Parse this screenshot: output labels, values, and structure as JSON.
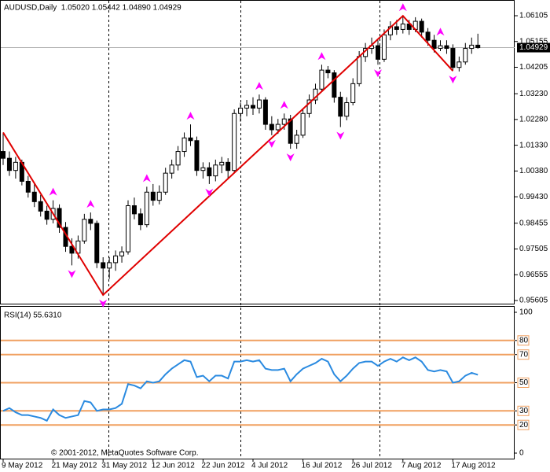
{
  "chart_data": [
    {
      "type": "candlestick",
      "title": "AUDUSD,Daily  1.05020 1.05442 1.04890 1.04929",
      "categories": [
        "9 May 2012",
        null,
        null,
        null,
        null,
        null,
        null,
        null,
        "21 May 2012",
        null,
        null,
        null,
        null,
        null,
        null,
        null,
        "31 May 2012",
        null,
        null,
        null,
        null,
        null,
        null,
        null,
        "12 Jun 2012",
        null,
        null,
        null,
        null,
        null,
        null,
        null,
        "22 Jun 2012",
        null,
        null,
        null,
        null,
        null,
        null,
        null,
        "4 Jul 2012",
        null,
        null,
        null,
        null,
        null,
        null,
        null,
        "16 Jul 2012",
        null,
        null,
        null,
        null,
        null,
        null,
        null,
        "26 Jul 2012",
        null,
        null,
        null,
        null,
        null,
        null,
        null,
        "7 Aug 2012",
        null,
        null,
        null,
        null,
        null,
        null,
        null,
        "17 Aug 2012",
        null,
        null,
        null,
        null
      ],
      "candles": [
        [
          1.011,
          1.018,
          1.006,
          1.0085
        ],
        [
          1.0085,
          1.011,
          1.002,
          1.004
        ],
        [
          1.004,
          1.009,
          1.001,
          1.007
        ],
        [
          1.007,
          1.008,
          0.9985,
          1.0
        ],
        [
          1.0,
          1.002,
          0.994,
          0.996
        ],
        [
          0.996,
          0.999,
          0.9905,
          0.9925
        ],
        [
          0.9925,
          0.995,
          0.987,
          0.989
        ],
        [
          0.989,
          0.991,
          0.984,
          0.986
        ],
        [
          0.986,
          0.993,
          0.9845,
          0.99
        ],
        [
          0.99,
          0.9915,
          0.981,
          0.983
        ],
        [
          0.983,
          0.985,
          0.974,
          0.976
        ],
        [
          0.976,
          0.979,
          0.969,
          0.9735
        ],
        [
          0.9735,
          0.98,
          0.9715,
          0.978
        ],
        [
          0.978,
          0.988,
          0.977,
          0.986
        ],
        [
          0.986,
          0.9885,
          0.982,
          0.9845
        ],
        [
          0.9845,
          0.9855,
          0.968,
          0.97
        ],
        [
          0.97,
          0.972,
          0.9581,
          0.968
        ],
        [
          0.968,
          0.972,
          0.964,
          0.97
        ],
        [
          0.97,
          0.9745,
          0.967,
          0.9725
        ],
        [
          0.9725,
          0.976,
          0.97,
          0.974
        ],
        [
          0.974,
          0.993,
          0.973,
          0.991
        ],
        [
          0.991,
          0.994,
          0.986,
          0.988
        ],
        [
          0.988,
          0.99,
          0.982,
          0.984
        ],
        [
          0.984,
          0.998,
          0.983,
          0.996
        ],
        [
          0.996,
          0.999,
          0.991,
          0.993
        ],
        [
          0.993,
          0.9985,
          0.9915,
          0.996
        ],
        [
          0.996,
          1.005,
          0.995,
          1.003
        ],
        [
          1.003,
          1.008,
          1.001,
          1.006
        ],
        [
          1.006,
          1.013,
          1.004,
          1.011
        ],
        [
          1.011,
          1.018,
          1.009,
          1.016
        ],
        [
          1.016,
          1.021,
          1.013,
          1.015
        ],
        [
          1.015,
          1.0165,
          1.002,
          1.004
        ],
        [
          1.004,
          1.007,
          1.001,
          1.005
        ],
        [
          1.005,
          1.007,
          0.999,
          1.002
        ],
        [
          1.002,
          1.008,
          1.0,
          1.006
        ],
        [
          1.006,
          1.009,
          1.003,
          1.007
        ],
        [
          1.007,
          1.0085,
          1.001,
          1.004
        ],
        [
          1.004,
          1.0265,
          1.003,
          1.025
        ],
        [
          1.025,
          1.029,
          1.022,
          1.027
        ],
        [
          1.027,
          1.03,
          1.024,
          1.028
        ],
        [
          1.028,
          1.031,
          1.0245,
          1.027
        ],
        [
          1.027,
          1.032,
          1.025,
          1.03
        ],
        [
          1.03,
          1.031,
          1.019,
          1.021
        ],
        [
          1.021,
          1.024,
          1.017,
          1.019
        ],
        [
          1.019,
          1.023,
          1.0175,
          1.021
        ],
        [
          1.021,
          1.025,
          1.019,
          1.023
        ],
        [
          1.023,
          1.0245,
          1.012,
          1.014
        ],
        [
          1.014,
          1.019,
          1.012,
          1.017
        ],
        [
          1.017,
          1.0265,
          1.016,
          1.025
        ],
        [
          1.025,
          1.032,
          1.0235,
          1.03
        ],
        [
          1.03,
          1.036,
          1.0285,
          1.034
        ],
        [
          1.034,
          1.043,
          1.033,
          1.041
        ],
        [
          1.041,
          1.0425,
          1.038,
          1.04
        ],
        [
          1.04,
          1.041,
          1.029,
          1.031
        ],
        [
          1.031,
          1.033,
          1.02,
          1.024
        ],
        [
          1.024,
          1.031,
          1.0225,
          1.029
        ],
        [
          1.029,
          1.038,
          1.028,
          1.036
        ],
        [
          1.036,
          1.048,
          1.035,
          1.046
        ],
        [
          1.046,
          1.051,
          1.044,
          1.049
        ],
        [
          1.049,
          1.053,
          1.047,
          1.05
        ],
        [
          1.05,
          1.052,
          1.043,
          1.045
        ],
        [
          1.045,
          1.056,
          1.044,
          1.054
        ],
        [
          1.054,
          1.059,
          1.052,
          1.057
        ],
        [
          1.057,
          1.0595,
          1.054,
          1.056
        ],
        [
          1.056,
          1.061,
          1.0545,
          1.058
        ],
        [
          1.058,
          1.0595,
          1.054,
          1.056
        ],
        [
          1.056,
          1.0605,
          1.055,
          1.059
        ],
        [
          1.059,
          1.06,
          1.053,
          1.055
        ],
        [
          1.055,
          1.0565,
          1.05,
          1.052
        ],
        [
          1.052,
          1.054,
          1.0475,
          1.049
        ],
        [
          1.049,
          1.052,
          1.048,
          1.05
        ],
        [
          1.05,
          1.052,
          1.047,
          1.049
        ],
        [
          1.049,
          1.0505,
          1.0407,
          1.042
        ],
        [
          1.042,
          1.046,
          1.0405,
          1.044
        ],
        [
          1.044,
          1.051,
          1.043,
          1.049
        ],
        [
          1.049,
          1.053,
          1.047,
          1.0502
        ],
        [
          1.0502,
          1.05442,
          1.0489,
          1.04929
        ]
      ],
      "ylim": [
        0.95605,
        1.06105
      ],
      "yticks": [
        1.06105,
        1.05155,
        1.04205,
        {
          "value": 1.0323,
          "label": "1.03230"
        },
        {
          "value": 1.0228,
          "label": "1.02280"
        },
        {
          "value": 1.0133,
          "label": "1.01330"
        },
        {
          "value": 1.0038,
          "label": "1.00380"
        },
        {
          "value": 0.9943,
          "label": "0.99430"
        },
        0.98455,
        0.97505,
        0.96555,
        0.95605
      ],
      "last_price": {
        "value": 1.04929,
        "label": "1.04929"
      },
      "zigzag": {
        "color": "#e00000",
        "indices": [
          0,
          16,
          64,
          72
        ],
        "values": [
          1.018,
          0.9581,
          1.061,
          1.0407
        ]
      },
      "fractals": {
        "color": "#ff00ff",
        "up": [
          8,
          14,
          23,
          30,
          41,
          45,
          51,
          64,
          70
        ],
        "down": [
          11,
          16,
          33,
          43,
          46,
          54,
          60,
          72
        ]
      }
    },
    {
      "type": "line",
      "title": "RSI(14) 55.6310",
      "annotation": "© 2001-2012, MetaQuotes Software Corp.",
      "series": [
        {
          "name": "RSI(14)",
          "color": "#2a8ae0",
          "values": [
            30,
            32,
            29,
            27,
            27,
            26,
            25,
            23,
            31,
            27,
            25,
            26,
            27,
            37,
            36,
            30,
            31,
            31,
            32,
            35,
            49,
            48,
            46,
            51,
            50,
            51,
            56,
            60,
            63,
            66,
            65,
            54,
            55,
            51,
            55,
            55,
            53,
            65,
            65,
            66,
            65,
            66,
            60,
            59,
            59,
            60,
            51,
            56,
            60,
            62,
            64,
            67,
            65,
            56,
            51,
            55,
            60,
            64,
            65,
            65,
            62,
            65,
            67,
            65,
            68,
            66,
            68,
            65,
            59,
            58,
            59,
            58,
            50,
            51,
            55,
            57,
            55.631
          ]
        }
      ],
      "ylim": [
        0,
        100
      ],
      "yticks": [
        100,
        80,
        70,
        50,
        30,
        20,
        0
      ],
      "levels": [
        80,
        70,
        50,
        30,
        20
      ],
      "level_color": "#f0a060"
    }
  ]
}
